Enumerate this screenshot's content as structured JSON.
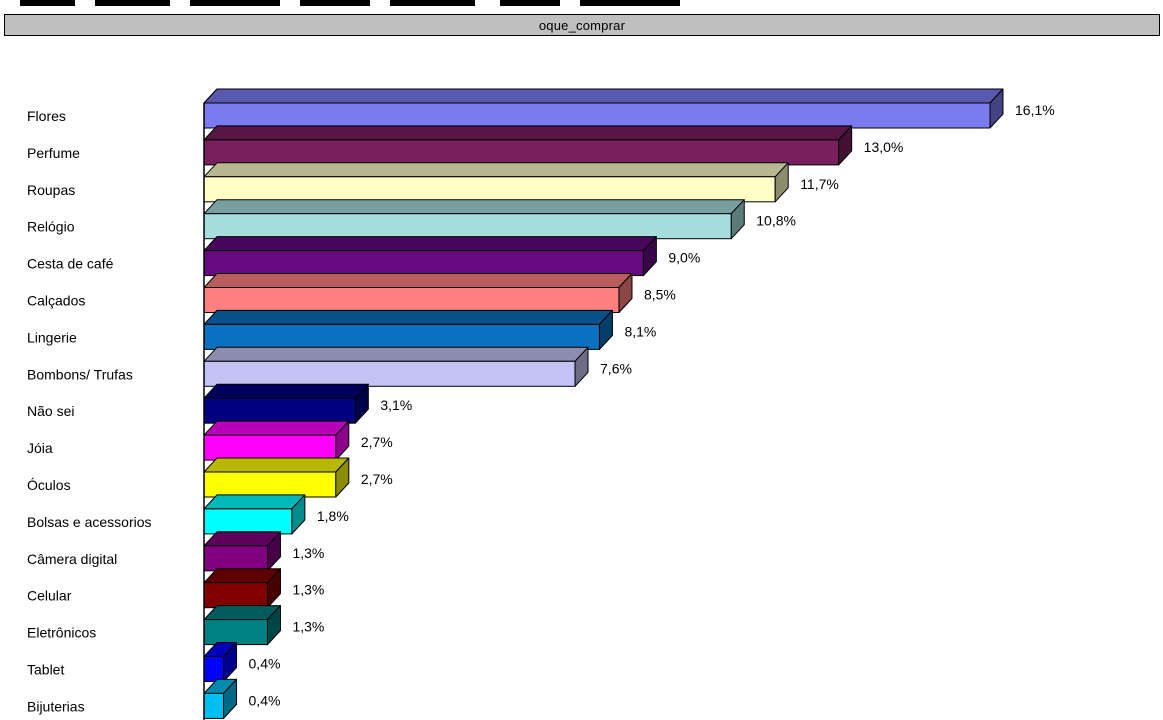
{
  "header": {
    "title": "oque_comprar"
  },
  "chart_data": {
    "type": "bar",
    "orientation": "horizontal",
    "title": "oque_comprar",
    "xlim": [
      0,
      16.1
    ],
    "grid": false,
    "categories": [
      "Flores",
      "Perfume",
      "Roupas",
      "Relógio",
      "Cesta de café",
      "Calçados",
      "Lingerie",
      "Bombons/ Trufas",
      "Não sei",
      "Jóia",
      "Óculos",
      "Bolsas e acessorios",
      "Câmera digital",
      "Celular",
      "Eletrônicos",
      "Tablet",
      "Bijuterias"
    ],
    "values": [
      16.1,
      13.0,
      11.7,
      10.8,
      9.0,
      8.5,
      8.1,
      7.6,
      3.1,
      2.7,
      2.7,
      1.8,
      1.3,
      1.3,
      1.3,
      0.4,
      0.4
    ],
    "labels": [
      "16,1%",
      "13,0%",
      "11,7%",
      "10,8%",
      "9,0%",
      "8,5%",
      "8,1%",
      "7,6%",
      "3,1%",
      "2,7%",
      "2,7%",
      "1,8%",
      "1,3%",
      "1,3%",
      "1,3%",
      "0,4%",
      "0,4%"
    ],
    "colors": [
      "#7b7bf0",
      "#7a1f5e",
      "#ffffc8",
      "#a6dede",
      "#660a80",
      "#ff8080",
      "#0a70c0",
      "#c4c4f4",
      "#000080",
      "#ff00ff",
      "#ffff00",
      "#00ffff",
      "#800080",
      "#800000",
      "#008080",
      "#0000ff",
      "#00c0f0"
    ]
  }
}
